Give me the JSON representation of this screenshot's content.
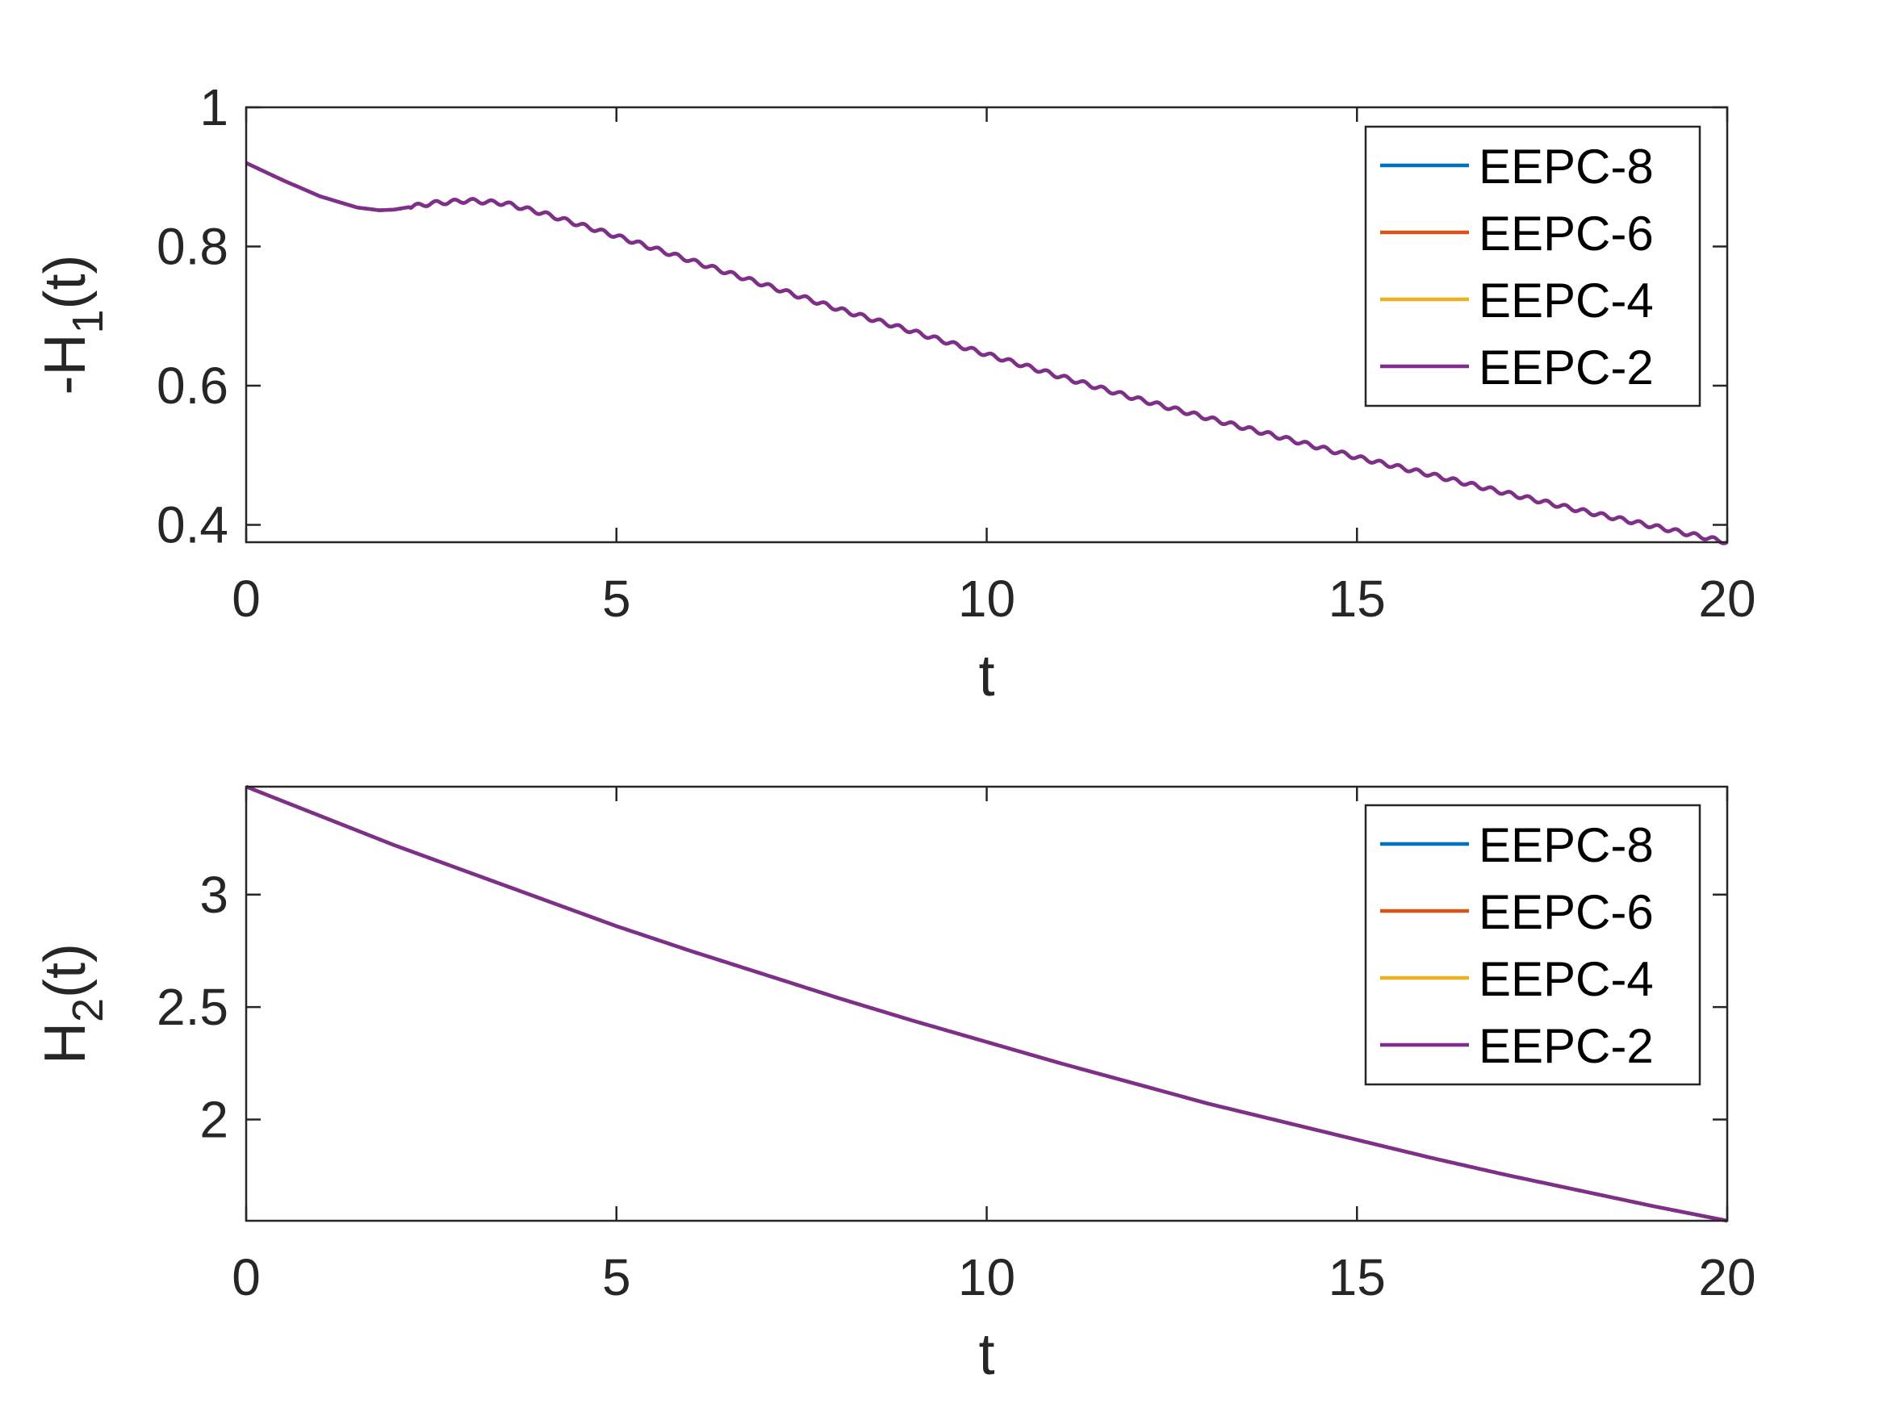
{
  "chart_data": [
    {
      "type": "line",
      "xlabel": "t",
      "ylabel_main": "-H",
      "ylabel_sub": "1",
      "ylabel_tail": "(t)",
      "xlim": [
        0,
        20
      ],
      "ylim": [
        0.375,
        1.0
      ],
      "xticks": [
        0,
        5,
        10,
        15,
        20
      ],
      "yticks": [
        0.4,
        0.6,
        0.8,
        1.0
      ],
      "ytick_labels": [
        "0.4",
        "0.6",
        "0.8",
        "1"
      ],
      "xtick_labels": [
        "0",
        "5",
        "10",
        "15",
        "20"
      ],
      "legend_position": "top-right",
      "series": [
        {
          "name": "EEPC-8",
          "color": "#0072BD"
        },
        {
          "name": "EEPC-6",
          "color": "#D95319"
        },
        {
          "name": "EEPC-4",
          "color": "#EDB120"
        },
        {
          "name": "EEPC-2",
          "color": "#7E2F8E"
        }
      ],
      "x": [
        0,
        0.5,
        1.0,
        1.5,
        1.8,
        2.0,
        2.5,
        3.0,
        3.5,
        4.0,
        5.0,
        6.0,
        7.0,
        8.0,
        9.0,
        10.0,
        11.0,
        12.0,
        13.0,
        14.0,
        15.0,
        16.0,
        17.0,
        18.0,
        19.0,
        20.0
      ],
      "values": [
        0.92,
        0.895,
        0.872,
        0.856,
        0.852,
        0.853,
        0.862,
        0.866,
        0.862,
        0.848,
        0.815,
        0.78,
        0.745,
        0.71,
        0.678,
        0.645,
        0.613,
        0.582,
        0.553,
        0.525,
        0.497,
        0.472,
        0.446,
        0.421,
        0.398,
        0.375
      ],
      "oscillation": {
        "amplitude": 0.003,
        "period": 0.25
      }
    },
    {
      "type": "line",
      "xlabel": "t",
      "ylabel_main": "H",
      "ylabel_sub": "2",
      "ylabel_tail": "(t)",
      "xlim": [
        0,
        20
      ],
      "ylim": [
        1.55,
        3.48
      ],
      "xticks": [
        0,
        5,
        10,
        15,
        20
      ],
      "yticks": [
        2.0,
        2.5,
        3.0
      ],
      "ytick_labels": [
        "2",
        "2.5",
        "3"
      ],
      "xtick_labels": [
        "0",
        "5",
        "10",
        "15",
        "20"
      ],
      "legend_position": "top-right",
      "series": [
        {
          "name": "EEPC-8",
          "color": "#0072BD"
        },
        {
          "name": "EEPC-6",
          "color": "#D95319"
        },
        {
          "name": "EEPC-4",
          "color": "#EDB120"
        },
        {
          "name": "EEPC-2",
          "color": "#7E2F8E"
        }
      ],
      "x": [
        0,
        1,
        2,
        3,
        4,
        5,
        6,
        7,
        8,
        9,
        10,
        11,
        12,
        13,
        14,
        15,
        16,
        17,
        18,
        19,
        20
      ],
      "values": [
        3.48,
        3.35,
        3.22,
        3.1,
        2.98,
        2.86,
        2.75,
        2.645,
        2.54,
        2.44,
        2.345,
        2.25,
        2.16,
        2.07,
        1.99,
        1.91,
        1.83,
        1.755,
        1.685,
        1.615,
        1.55
      ],
      "oscillation": {
        "amplitude": 0,
        "period": 1
      }
    }
  ]
}
